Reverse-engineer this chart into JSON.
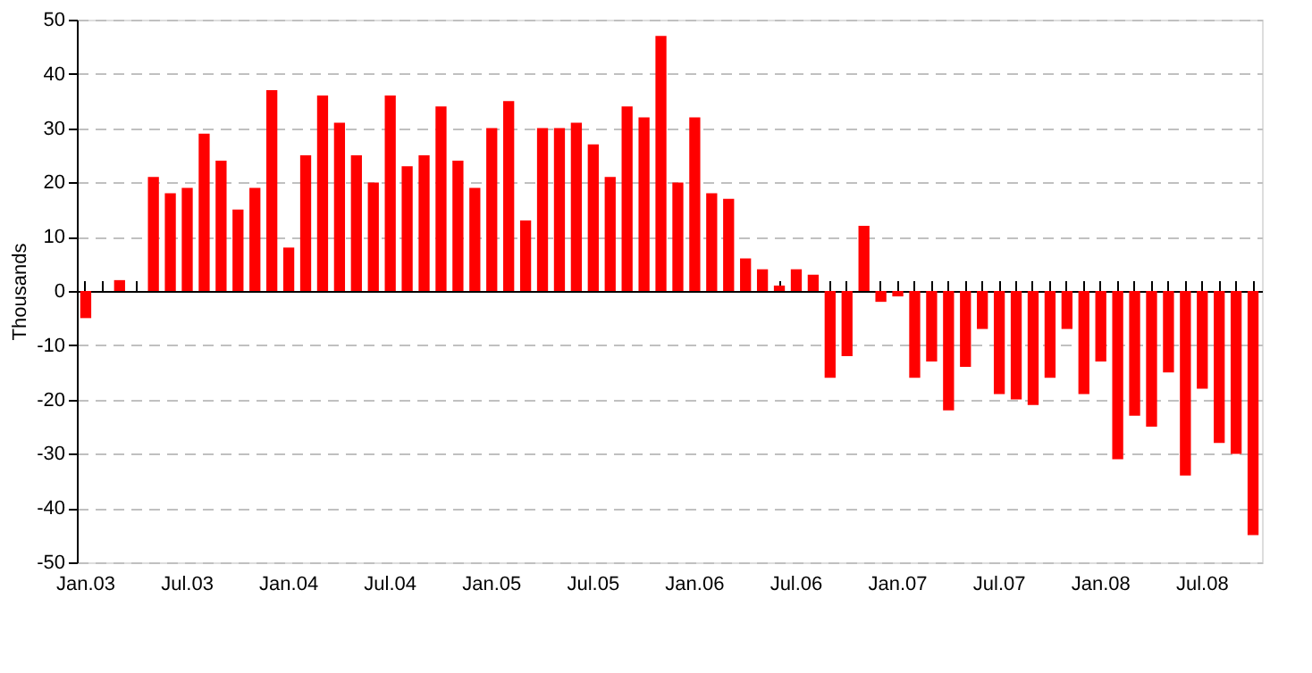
{
  "chart_data": {
    "type": "bar",
    "ylabel": "Thousands",
    "categories": [
      "Jan.03",
      null,
      null,
      null,
      null,
      null,
      "Jul.03",
      null,
      null,
      null,
      null,
      null,
      "Jan.04",
      null,
      null,
      null,
      null,
      null,
      "Jul.04",
      null,
      null,
      null,
      null,
      null,
      "Jan.05",
      null,
      null,
      null,
      null,
      null,
      "Jul.05",
      null,
      null,
      null,
      null,
      null,
      "Jan.06",
      null,
      null,
      null,
      null,
      null,
      "Jul.06",
      null,
      null,
      null,
      null,
      null,
      "Jan.07",
      null,
      null,
      null,
      null,
      null,
      "Jul.07",
      null,
      null,
      null,
      null,
      null,
      "Jan.08",
      null,
      null,
      null,
      null,
      null,
      "Jul.08",
      null,
      null,
      null
    ],
    "series": [
      {
        "color": "#ff0000",
        "values": [
          -5,
          null,
          2,
          null,
          21,
          18,
          19,
          29,
          24,
          15,
          19,
          37,
          8,
          25,
          36,
          31,
          25,
          20,
          36,
          23,
          25,
          34,
          24,
          19,
          30,
          35,
          13,
          30,
          30,
          31,
          27,
          21,
          34,
          32,
          47,
          20,
          32,
          18,
          17,
          6,
          4,
          1,
          4,
          3,
          -16,
          -12,
          12,
          -2,
          -1,
          -16,
          -13,
          -22,
          -14,
          -7,
          -19,
          -20,
          -21,
          -16,
          -7,
          -19,
          -13,
          -31,
          -23,
          -25,
          -15,
          -34,
          -18,
          -28,
          -30,
          -45
        ]
      }
    ],
    "ylim": [
      -50,
      50
    ],
    "yticks": [
      -50,
      -40,
      -30,
      -20,
      -10,
      0,
      10,
      20,
      30,
      40,
      50
    ],
    "grid": "y"
  }
}
